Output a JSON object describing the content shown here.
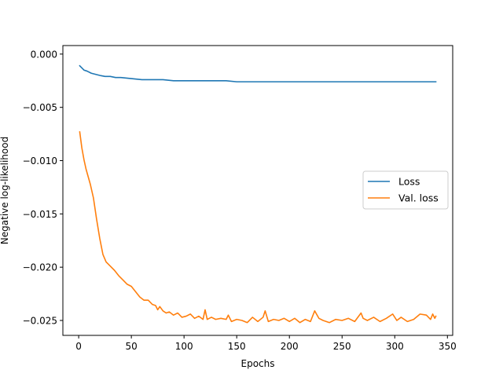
{
  "chart_data": {
    "type": "line",
    "title": "",
    "xlabel": "Epochs",
    "ylabel": "Negative log-likelihood",
    "xlim": [
      -15,
      355
    ],
    "ylim": [
      -0.0264,
      0.0008
    ],
    "xticks": [
      0,
      50,
      100,
      150,
      200,
      250,
      300,
      350
    ],
    "xtick_labels": [
      "0",
      "50",
      "100",
      "150",
      "200",
      "250",
      "300",
      "350"
    ],
    "yticks": [
      0.0,
      -0.005,
      -0.01,
      -0.015,
      -0.02,
      -0.025
    ],
    "ytick_labels": [
      "0.000",
      "−0.005",
      "−0.010",
      "−0.015",
      "−0.020",
      "−0.025"
    ],
    "grid": false,
    "legend_position": "center-right",
    "series": [
      {
        "name": "Loss",
        "color": "#1f77b4",
        "x": [
          1,
          3,
          5,
          8,
          12,
          16,
          20,
          25,
          30,
          35,
          40,
          50,
          60,
          70,
          80,
          90,
          100,
          110,
          120,
          130,
          140,
          150,
          160,
          170,
          180,
          190,
          200,
          210,
          220,
          230,
          240,
          250,
          260,
          270,
          280,
          290,
          300,
          310,
          320,
          330,
          339
        ],
        "y": [
          -0.0011,
          -0.0013,
          -0.0015,
          -0.0016,
          -0.0018,
          -0.0019,
          -0.002,
          -0.0021,
          -0.0021,
          -0.0022,
          -0.0022,
          -0.0023,
          -0.0024,
          -0.0024,
          -0.0024,
          -0.0025,
          -0.0025,
          -0.0025,
          -0.0025,
          -0.0025,
          -0.0025,
          -0.0026,
          -0.0026,
          -0.0026,
          -0.0026,
          -0.0026,
          -0.0026,
          -0.0026,
          -0.0026,
          -0.0026,
          -0.0026,
          -0.0026,
          -0.0026,
          -0.0026,
          -0.0026,
          -0.0026,
          -0.0026,
          -0.0026,
          -0.0026,
          -0.0026,
          -0.0026
        ]
      },
      {
        "name": "Val. loss",
        "color": "#ff7f0e",
        "x": [
          1,
          3,
          5,
          7,
          9,
          11,
          14,
          17,
          20,
          23,
          26,
          30,
          34,
          38,
          42,
          46,
          50,
          54,
          58,
          62,
          66,
          70,
          73,
          75,
          77,
          80,
          83,
          86,
          90,
          94,
          98,
          102,
          106,
          110,
          114,
          118,
          120,
          122,
          126,
          130,
          135,
          140,
          142,
          145,
          150,
          155,
          160,
          165,
          170,
          175,
          177,
          180,
          185,
          190,
          195,
          200,
          205,
          210,
          215,
          220,
          224,
          228,
          232,
          238,
          244,
          250,
          256,
          262,
          268,
          270,
          274,
          280,
          286,
          292,
          298,
          302,
          306,
          312,
          318,
          324,
          330,
          334,
          336,
          338,
          339
        ],
        "y": [
          -0.0073,
          -0.0088,
          -0.0099,
          -0.0108,
          -0.0115,
          -0.0122,
          -0.0135,
          -0.0155,
          -0.0173,
          -0.0188,
          -0.0195,
          -0.0199,
          -0.0203,
          -0.0208,
          -0.0212,
          -0.0216,
          -0.0218,
          -0.0223,
          -0.0228,
          -0.0231,
          -0.0231,
          -0.0235,
          -0.0236,
          -0.024,
          -0.0237,
          -0.0241,
          -0.0243,
          -0.0242,
          -0.0245,
          -0.0243,
          -0.0247,
          -0.0246,
          -0.0244,
          -0.0248,
          -0.0246,
          -0.0249,
          -0.024,
          -0.0249,
          -0.0247,
          -0.0249,
          -0.0248,
          -0.0249,
          -0.0245,
          -0.0251,
          -0.0249,
          -0.025,
          -0.0252,
          -0.0247,
          -0.0251,
          -0.0247,
          -0.0241,
          -0.0251,
          -0.0249,
          -0.025,
          -0.0248,
          -0.0251,
          -0.0248,
          -0.0252,
          -0.0249,
          -0.0251,
          -0.0241,
          -0.0248,
          -0.025,
          -0.0252,
          -0.0249,
          -0.025,
          -0.0248,
          -0.0251,
          -0.0243,
          -0.0248,
          -0.025,
          -0.0247,
          -0.0251,
          -0.0248,
          -0.0244,
          -0.025,
          -0.0247,
          -0.0251,
          -0.0249,
          -0.0244,
          -0.0245,
          -0.0249,
          -0.0244,
          -0.0248,
          -0.0246
        ]
      }
    ]
  }
}
